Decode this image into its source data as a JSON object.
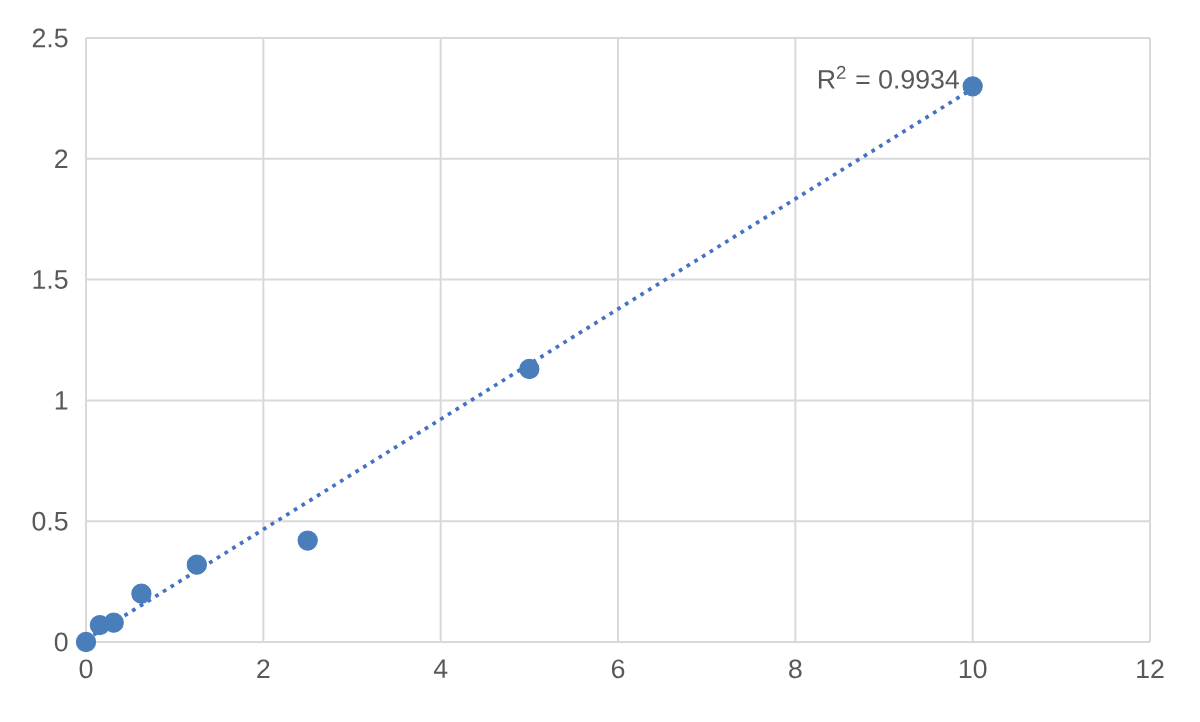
{
  "chart_data": {
    "type": "scatter",
    "grid": true,
    "xlim": [
      0,
      12
    ],
    "xticks": [
      0,
      2,
      4,
      6,
      8,
      10,
      12
    ],
    "ylim": [
      0,
      2.5
    ],
    "yticks": [
      0,
      0.5,
      1,
      1.5,
      2,
      2.5
    ],
    "series": [
      {
        "marker": "circle",
        "color": "#4a7ebb",
        "x": [
          0,
          0.156,
          0.3125,
          0.625,
          1.25,
          2.5,
          5,
          10
        ],
        "values": [
          0,
          0.07,
          0.08,
          0.2,
          0.32,
          0.42,
          1.13,
          2.3
        ]
      },
      {
        "type": "line",
        "line_style": "dotted",
        "marker": "none",
        "color": "#4472c4",
        "x": [
          0,
          10
        ],
        "values": [
          0.01,
          2.29
        ]
      }
    ],
    "annotations": [
      "R$^{2}$ = 0.9934"
    ]
  }
}
